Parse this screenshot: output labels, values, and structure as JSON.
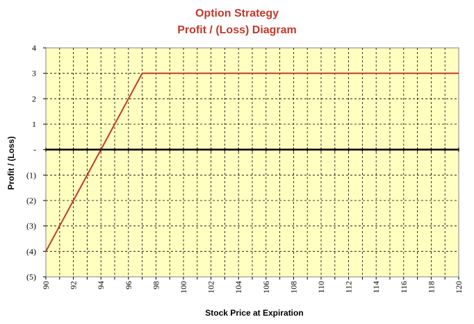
{
  "chart_data": {
    "type": "line",
    "title": [
      "Option Strategy",
      "Profit / (Loss) Diagram"
    ],
    "xlabel": "Stock Price at Expiration",
    "ylabel": "Profit / (Loss)",
    "xlim": [
      90,
      120
    ],
    "ylim": [
      -5,
      4
    ],
    "x_ticks": [
      "90",
      "92",
      "94",
      "96",
      "98",
      "100",
      "102",
      "104",
      "106",
      "108",
      "110",
      "112",
      "114",
      "116",
      "118",
      "120"
    ],
    "y_ticks": [
      {
        "value": 4,
        "label": "4"
      },
      {
        "value": 3,
        "label": "3"
      },
      {
        "value": 2,
        "label": "2"
      },
      {
        "value": 1,
        "label": "1"
      },
      {
        "value": 0,
        "label": "-"
      },
      {
        "value": -1,
        "label": "(1)"
      },
      {
        "value": -2,
        "label": "(2)"
      },
      {
        "value": -3,
        "label": "(3)"
      },
      {
        "value": -4,
        "label": "(4)"
      },
      {
        "value": -5,
        "label": "(5)"
      }
    ],
    "grid": true,
    "series": [
      {
        "color": "#c0392b",
        "points": [
          [
            90,
            -4
          ],
          [
            97,
            3
          ],
          [
            120,
            3
          ]
        ]
      }
    ],
    "colors": {
      "plot_background": "#ffffc0",
      "title": "#c0392b",
      "zero_line": "#000000",
      "grid": "#000000"
    }
  }
}
